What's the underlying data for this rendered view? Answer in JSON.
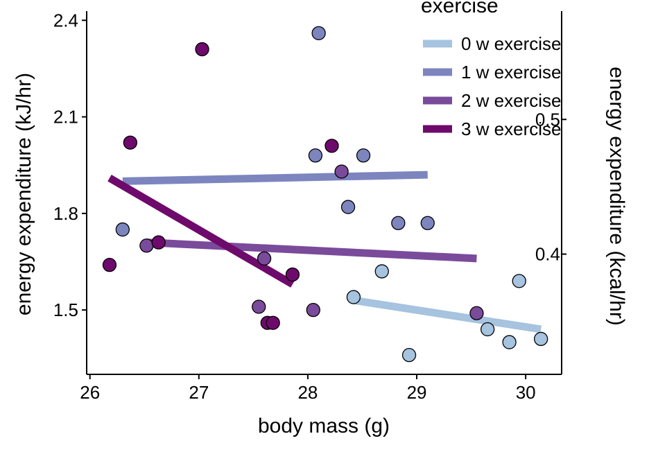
{
  "chart_data": {
    "type": "scatter",
    "title": "",
    "xlabel": "body mass (g)",
    "ylabel": "energy expenditure (kJ/hr)",
    "y2label": "energy expenditure (kcal/hr)",
    "xlim": [
      25.97,
      30.33
    ],
    "ylim": [
      1.3,
      2.42
    ],
    "xticks": [
      26,
      27,
      28,
      29,
      30
    ],
    "yticks": [
      1.5,
      1.8,
      2.1,
      2.4
    ],
    "yticks_labels": [
      "1.5",
      "1.8",
      "2.1",
      "2.4"
    ],
    "y2ticks": [
      0.4,
      0.5
    ],
    "y2ticks_labels": [
      "0.4",
      "0.5"
    ],
    "y2_conversion_factor": 0.239006,
    "grid": false,
    "legend": {
      "title": "exercise",
      "placement": "top-right"
    },
    "series": [
      {
        "name": "0 w exercise",
        "color": "#a6c3df",
        "points": [
          {
            "x": 28.42,
            "y": 1.54
          },
          {
            "x": 28.68,
            "y": 1.62
          },
          {
            "x": 28.93,
            "y": 1.36
          },
          {
            "x": 29.65,
            "y": 1.44
          },
          {
            "x": 29.85,
            "y": 1.4
          },
          {
            "x": 29.94,
            "y": 1.59
          },
          {
            "x": 30.14,
            "y": 1.41
          }
        ],
        "fit": [
          {
            "x": 28.42,
            "y": 1.53
          },
          {
            "x": 30.14,
            "y": 1.44
          }
        ]
      },
      {
        "name": "1 w exercise",
        "color": "#7d85bf",
        "points": [
          {
            "x": 26.3,
            "y": 1.75
          },
          {
            "x": 28.07,
            "y": 1.98
          },
          {
            "x": 28.1,
            "y": 2.36
          },
          {
            "x": 28.37,
            "y": 1.82
          },
          {
            "x": 28.51,
            "y": 1.98
          },
          {
            "x": 28.83,
            "y": 1.77
          },
          {
            "x": 29.1,
            "y": 1.77
          }
        ],
        "fit": [
          {
            "x": 26.3,
            "y": 1.9
          },
          {
            "x": 29.1,
            "y": 1.92
          }
        ]
      },
      {
        "name": "2 w exercise",
        "color": "#7a4a9b",
        "points": [
          {
            "x": 26.52,
            "y": 1.7
          },
          {
            "x": 27.55,
            "y": 1.51
          },
          {
            "x": 27.6,
            "y": 1.66
          },
          {
            "x": 28.05,
            "y": 1.5
          },
          {
            "x": 28.31,
            "y": 1.93
          },
          {
            "x": 29.55,
            "y": 1.49
          }
        ],
        "fit": [
          {
            "x": 26.52,
            "y": 1.71
          },
          {
            "x": 29.55,
            "y": 1.66
          }
        ]
      },
      {
        "name": "3 w exercise",
        "color": "#6e0a6b",
        "points": [
          {
            "x": 26.18,
            "y": 1.64
          },
          {
            "x": 26.37,
            "y": 2.02
          },
          {
            "x": 26.63,
            "y": 1.71
          },
          {
            "x": 27.03,
            "y": 2.31
          },
          {
            "x": 27.63,
            "y": 1.46
          },
          {
            "x": 27.68,
            "y": 1.46
          },
          {
            "x": 27.86,
            "y": 1.61
          },
          {
            "x": 28.22,
            "y": 2.01
          }
        ],
        "fit": [
          {
            "x": 26.18,
            "y": 1.91
          },
          {
            "x": 27.86,
            "y": 1.58
          }
        ]
      }
    ]
  }
}
